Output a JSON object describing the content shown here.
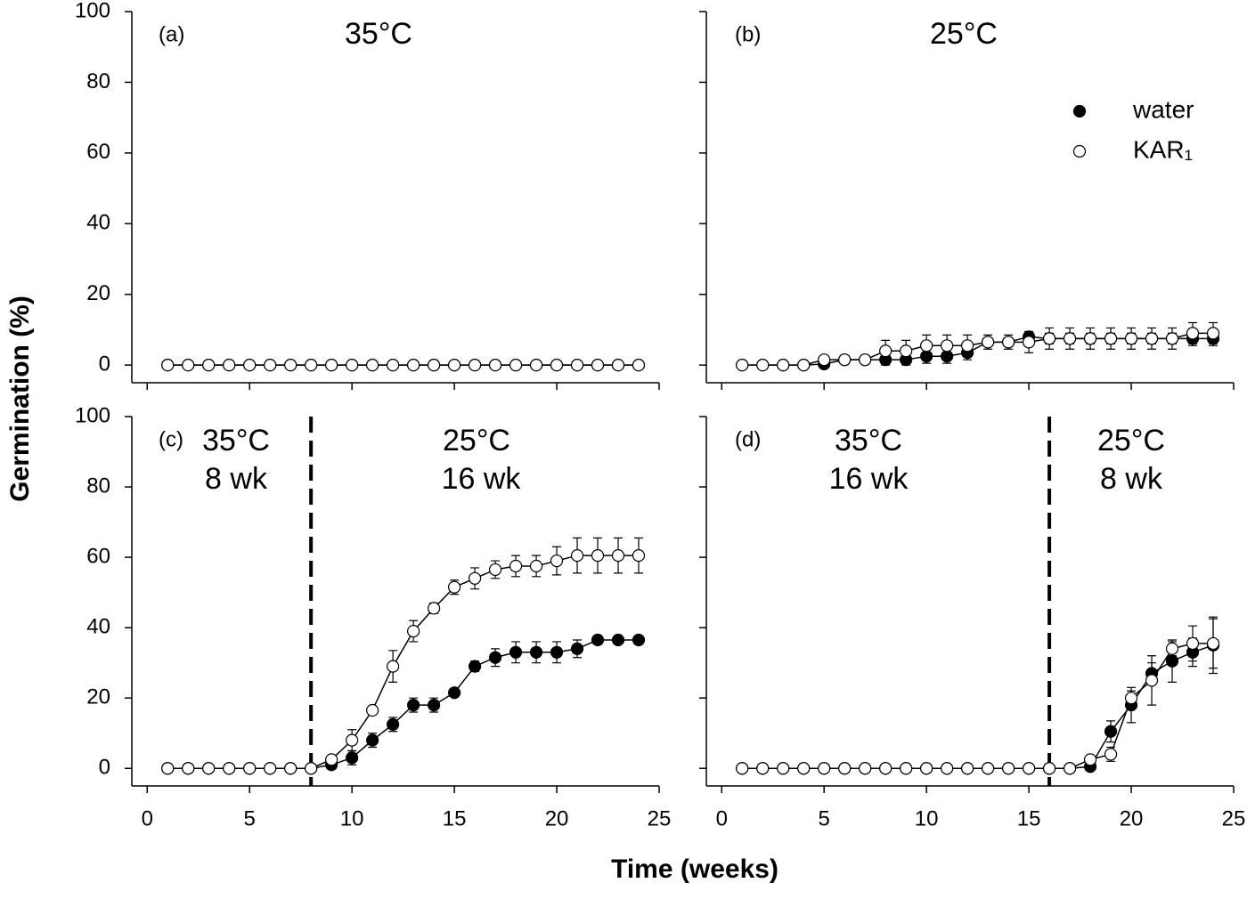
{
  "chart_data": [
    {
      "type": "line",
      "annotations": [
        "(a)",
        "35°C"
      ],
      "ylabel": "Germination (%)",
      "x": [
        1,
        2,
        3,
        4,
        5,
        6,
        7,
        8,
        9,
        10,
        11,
        12,
        13,
        14,
        15,
        16,
        17,
        18,
        19,
        20,
        21,
        22,
        23,
        24
      ],
      "series": [
        {
          "name": "water",
          "color": "#000000",
          "values": [
            0,
            0,
            0,
            0,
            0,
            0,
            0,
            0,
            0,
            0,
            0,
            0,
            0,
            0,
            0,
            0,
            0,
            0,
            0,
            0,
            0,
            0,
            0,
            0
          ]
        },
        {
          "name": "KAR₁",
          "color": "#ffffff",
          "values": [
            0,
            0,
            0,
            0,
            0,
            0,
            0,
            0,
            0,
            0,
            0,
            0,
            0,
            0,
            0,
            0,
            0,
            0,
            0,
            0,
            0,
            0,
            0,
            0
          ]
        }
      ],
      "xlim": [
        -0.75,
        25
      ],
      "ylim": [
        -5,
        100
      ],
      "xticks": [
        0,
        5,
        10,
        15,
        20,
        25
      ],
      "yticks": [
        0,
        20,
        40,
        60,
        80,
        100
      ]
    },
    {
      "type": "line",
      "annotations": [
        "(b)",
        "25°C"
      ],
      "legend": "upper right",
      "x": [
        1,
        2,
        3,
        4,
        5,
        6,
        7,
        8,
        9,
        10,
        11,
        12,
        13,
        14,
        15,
        16,
        17,
        18,
        19,
        20,
        21,
        22,
        23,
        24
      ],
      "series": [
        {
          "name": "water",
          "color": "#000000",
          "values": [
            0,
            0,
            0,
            0,
            0.3,
            1.5,
            1.5,
            1.5,
            1.5,
            2.5,
            2.5,
            3.5,
            6.5,
            6.5,
            8,
            7.5,
            7.5,
            7.5,
            7.5,
            7.5,
            7.5,
            7.5,
            7.5,
            7.5
          ],
          "errors": [
            0,
            0,
            0,
            0,
            0.5,
            1,
            1,
            1.5,
            1.5,
            2,
            2,
            2,
            1,
            1,
            1,
            1.5,
            1.5,
            1.5,
            1.5,
            1.5,
            1.5,
            1.5,
            2,
            2
          ]
        },
        {
          "name": "KAR₁",
          "color": "#ffffff",
          "values": [
            0,
            0,
            0,
            0,
            1.5,
            1.5,
            1.5,
            4,
            4,
            5.5,
            5.5,
            5.5,
            6.5,
            6.5,
            6.5,
            7.5,
            7.5,
            7.5,
            7.5,
            7.5,
            7.5,
            7.5,
            9,
            9
          ],
          "errors": [
            0,
            0,
            0,
            0,
            1,
            1,
            1,
            3,
            3,
            3,
            3,
            3,
            2,
            2,
            3,
            3,
            3,
            3,
            3,
            3,
            3,
            3,
            3,
            3
          ]
        }
      ],
      "xlim": [
        -0.75,
        25
      ],
      "ylim": [
        -5,
        100
      ],
      "xticks": [
        0,
        5,
        10,
        15,
        20,
        25
      ],
      "yticks": [
        0,
        20,
        40,
        60,
        80,
        100
      ]
    },
    {
      "type": "line",
      "annotations": [
        "(c)",
        "35°C",
        "8 wk",
        "25°C",
        "16 wk"
      ],
      "vline": 8,
      "xlabel": "Time (weeks)",
      "x": [
        1,
        2,
        3,
        4,
        5,
        6,
        7,
        8,
        9,
        10,
        11,
        12,
        13,
        14,
        15,
        16,
        17,
        18,
        19,
        20,
        21,
        22,
        23,
        24
      ],
      "series": [
        {
          "name": "water",
          "color": "#000000",
          "values": [
            0,
            0,
            0,
            0,
            0,
            0,
            0,
            0,
            1,
            3,
            8,
            12.5,
            18,
            18,
            21.5,
            29,
            31.5,
            33,
            33,
            33,
            34,
            36.5,
            36.5,
            36.5
          ],
          "errors": [
            0,
            0,
            0,
            0,
            0,
            0,
            0,
            0,
            0.5,
            2,
            2,
            2,
            2,
            2,
            1,
            1.5,
            2.5,
            3,
            3,
            3,
            2.5,
            1,
            1,
            1
          ]
        },
        {
          "name": "KAR₁",
          "color": "#ffffff",
          "values": [
            0,
            0,
            0,
            0,
            0,
            0,
            0,
            0,
            2.5,
            8,
            16.5,
            29,
            39,
            45.5,
            51.5,
            54,
            56.5,
            57.5,
            57.5,
            59,
            60.5,
            60.5,
            60.5,
            60.5
          ],
          "errors": [
            0,
            0,
            0,
            0,
            0,
            0,
            0,
            0,
            1,
            3,
            0,
            4.5,
            3,
            1.5,
            2,
            3,
            2.5,
            3,
            3,
            4,
            5,
            5,
            5,
            5
          ]
        }
      ],
      "xlim": [
        -0.75,
        25
      ],
      "ylim": [
        -5,
        100
      ],
      "xticks": [
        0,
        5,
        10,
        15,
        20,
        25
      ],
      "yticks": [
        0,
        20,
        40,
        60,
        80,
        100
      ]
    },
    {
      "type": "line",
      "annotations": [
        "(d)",
        "35°C",
        "16 wk",
        "25°C",
        "8 wk"
      ],
      "vline": 16,
      "x": [
        1,
        2,
        3,
        4,
        5,
        6,
        7,
        8,
        9,
        10,
        11,
        12,
        13,
        14,
        15,
        16,
        17,
        18,
        19,
        20,
        21,
        22,
        23,
        24
      ],
      "series": [
        {
          "name": "water",
          "color": "#000000",
          "values": [
            0,
            0,
            0,
            0,
            0,
            0,
            0,
            0,
            0,
            0,
            0,
            0,
            0,
            0,
            0,
            0,
            0,
            0.5,
            10.5,
            18,
            27,
            30.5,
            33,
            35
          ],
          "errors": [
            0,
            0,
            0,
            0,
            0,
            0,
            0,
            0,
            0,
            0,
            0,
            0,
            0,
            0,
            0,
            0,
            0,
            0,
            3,
            5,
            3,
            6,
            4,
            8
          ]
        },
        {
          "name": "KAR₁",
          "color": "#ffffff",
          "values": [
            0,
            0,
            0,
            0,
            0,
            0,
            0,
            0,
            0,
            0,
            0,
            0,
            0,
            0,
            0,
            0,
            0,
            2.5,
            4,
            20,
            25,
            34,
            35.5,
            35.5
          ],
          "errors": [
            0,
            0,
            0,
            0,
            0,
            0,
            0,
            0,
            0,
            0,
            0,
            0,
            0,
            0,
            0,
            0,
            0,
            1,
            2,
            2,
            7,
            2,
            5,
            7
          ]
        }
      ],
      "xlim": [
        -0.75,
        25
      ],
      "ylim": [
        -5,
        100
      ],
      "xticks": [
        0,
        5,
        10,
        15,
        20,
        25
      ],
      "yticks": [
        0,
        20,
        40,
        60,
        80,
        100
      ]
    }
  ]
}
